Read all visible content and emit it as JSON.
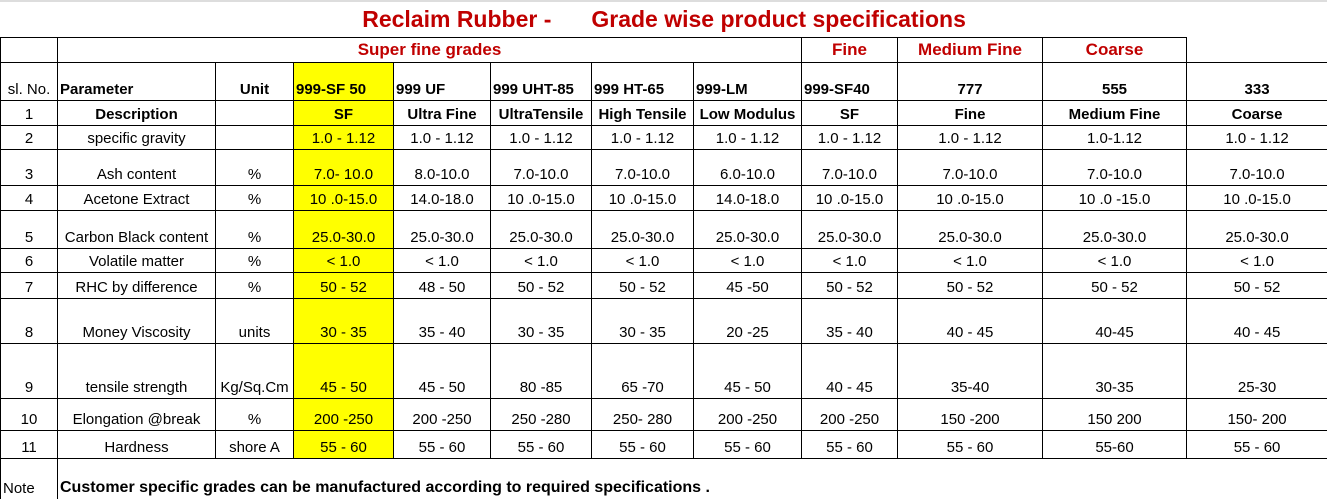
{
  "title_part1": "Reclaim Rubber -",
  "title_part2": "Grade wise  product specifications",
  "groups": {
    "super_fine": "Super fine grades",
    "fine": "Fine",
    "medium_fine": "Medium Fine",
    "coarse": "Coarse"
  },
  "header": {
    "sl": "sl. No.",
    "parameter": "Parameter",
    "unit": "Unit",
    "grades": [
      "999-SF 50",
      "999 UF",
      "999 UHT-85",
      "999 HT-65",
      "999-LM",
      "999-SF40",
      "777",
      "555",
      "333"
    ]
  },
  "highlight_color": "#ffff00",
  "rows": [
    {
      "no": "1",
      "param": "Description",
      "unit": "",
      "values": [
        "SF",
        "Ultra Fine",
        "UltraTensile",
        "High Tensile",
        "Low Modulus",
        "SF",
        "Fine",
        "Medium Fine",
        "Coarse"
      ]
    },
    {
      "no": "2",
      "param": "specific gravity",
      "unit": "",
      "values": [
        "1.0 - 1.12",
        "1.0 - 1.12",
        "1.0 - 1.12",
        "1.0 - 1.12",
        "1.0 - 1.12",
        "1.0 - 1.12",
        "1.0 - 1.12",
        "1.0-1.12",
        "1.0 - 1.12"
      ]
    },
    {
      "no": "3",
      "param": "Ash content",
      "unit": "%",
      "values": [
        "7.0- 10.0",
        "8.0-10.0",
        "7.0-10.0",
        "7.0-10.0",
        "6.0-10.0",
        "7.0-10.0",
        "7.0-10.0",
        "7.0-10.0",
        "7.0-10.0"
      ]
    },
    {
      "no": "4",
      "param": "Acetone Extract",
      "unit": "%",
      "values": [
        "10 .0-15.0",
        "14.0-18.0",
        "10 .0-15.0",
        "10 .0-15.0",
        "14.0-18.0",
        "10 .0-15.0",
        "10 .0-15.0",
        "10 .0 -15.0",
        "10 .0-15.0"
      ]
    },
    {
      "no": "5",
      "param": "Carbon Black content",
      "unit": "%",
      "values": [
        "25.0-30.0",
        "25.0-30.0",
        "25.0-30.0",
        "25.0-30.0",
        "25.0-30.0",
        "25.0-30.0",
        "25.0-30.0",
        "25.0-30.0",
        "25.0-30.0"
      ]
    },
    {
      "no": "6",
      "param": "Volatile matter",
      "unit": "%",
      "values": [
        "< 1.0",
        "< 1.0",
        "< 1.0",
        "< 1.0",
        "< 1.0",
        "< 1.0",
        "< 1.0",
        "< 1.0",
        "< 1.0"
      ]
    },
    {
      "no": "7",
      "param": "RHC by difference",
      "unit": "%",
      "values": [
        "50 -  52",
        "48 - 50",
        "50 -  52",
        "50 -  52",
        "45 -50",
        "50 -  52",
        "50 -  52",
        "50  -  52",
        "50 -  52"
      ]
    },
    {
      "no": "8",
      "param": "Money Viscosity",
      "unit": "units",
      "values": [
        "30 - 35",
        "35 - 40",
        "30 - 35",
        "30 - 35",
        "20 -25",
        "35 - 40",
        "40 - 45",
        "40-45",
        "40 - 45"
      ]
    },
    {
      "no": "9",
      "param": "tensile strength",
      "unit": "Kg/Sq.Cm",
      "values": [
        "45 - 50",
        "45 - 50",
        "80 -85",
        "65 -70",
        "45 - 50",
        "40 - 45",
        "35-40",
        "30-35",
        "25-30"
      ]
    },
    {
      "no": "10",
      "param": "Elongation @break",
      "unit": "%",
      "values": [
        "200 -250",
        "200 -250",
        "250 -280",
        "250- 280",
        "200 -250",
        "200 -250",
        "150 -200",
        "150 200",
        "150- 200"
      ]
    },
    {
      "no": "11",
      "param": "Hardness",
      "unit": "shore A",
      "values": [
        "55 - 60",
        "55 - 60",
        "55 - 60",
        "55 - 60",
        "55 - 60",
        "55 - 60",
        "55 - 60",
        "55-60",
        "55 - 60"
      ]
    }
  ],
  "note": {
    "label": "Note",
    "text": "Customer specific grades can be manufactured  according to required specifications ."
  }
}
